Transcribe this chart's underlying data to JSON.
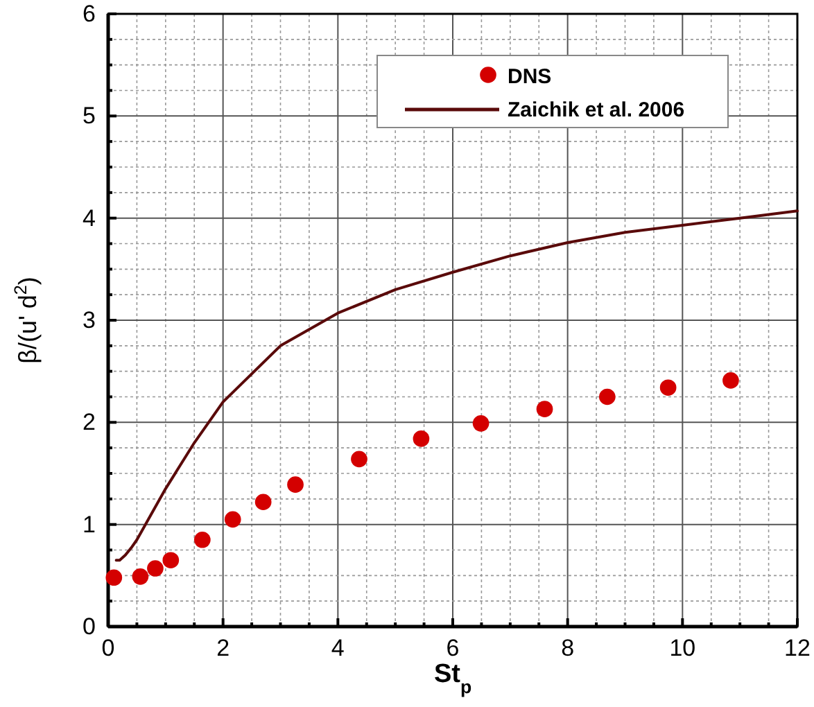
{
  "chart_data": {
    "type": "scatter",
    "xlabel": "St$_{p}$",
    "ylabel": "β/(u' d$^{2}$)",
    "xlim": [
      0,
      12
    ],
    "ylim": [
      0,
      6
    ],
    "xticks": [
      0,
      {
        "value": 0.5,
        "label": null
      },
      {
        "value": 1,
        "label": null
      },
      {
        "value": 1.5,
        "label": null
      },
      2,
      {
        "value": 2.5,
        "label": null
      },
      {
        "value": 3,
        "label": null
      },
      {
        "value": 3.5,
        "label": null
      },
      4,
      {
        "value": 4.5,
        "label": null
      },
      {
        "value": 5,
        "label": null
      },
      {
        "value": 5.5,
        "label": null
      },
      6,
      {
        "value": 6.5,
        "label": null
      },
      {
        "value": 7,
        "label": null
      },
      {
        "value": 7.5,
        "label": null
      },
      8,
      {
        "value": 8.5,
        "label": null
      },
      {
        "value": 9,
        "label": null
      },
      {
        "value": 9.5,
        "label": null
      },
      10,
      {
        "value": 10.5,
        "label": null
      },
      {
        "value": 11,
        "label": null
      },
      {
        "value": 11.5,
        "label": null
      },
      12
    ],
    "yticks": [
      0,
      {
        "value": 0.25,
        "label": null
      },
      {
        "value": 0.5,
        "label": null
      },
      {
        "value": 0.75,
        "label": null
      },
      1,
      {
        "value": 1.25,
        "label": null
      },
      {
        "value": 1.5,
        "label": null
      },
      {
        "value": 1.75,
        "label": null
      },
      2,
      {
        "value": 2.25,
        "label": null
      },
      {
        "value": 2.5,
        "label": null
      },
      {
        "value": 2.75,
        "label": null
      },
      3,
      {
        "value": 3.25,
        "label": null
      },
      {
        "value": 3.5,
        "label": null
      },
      {
        "value": 3.75,
        "label": null
      },
      4,
      {
        "value": 4.25,
        "label": null
      },
      {
        "value": 4.5,
        "label": null
      },
      {
        "value": 4.75,
        "label": null
      },
      5,
      {
        "value": 5.25,
        "label": null
      },
      {
        "value": 5.5,
        "label": null
      },
      {
        "value": 5.75,
        "label": null
      },
      6
    ],
    "grid": true,
    "legend": "top right",
    "series": [
      {
        "name": "DNS",
        "marker": "circle",
        "color": "#d40000",
        "x": [
          0.1,
          0.56,
          0.82,
          1.09,
          1.64,
          2.17,
          2.7,
          3.26,
          4.37,
          5.45,
          6.49,
          7.6,
          8.69,
          9.75,
          10.84
        ],
        "values": [
          0.48,
          0.49,
          0.57,
          0.65,
          0.85,
          1.05,
          1.22,
          1.39,
          1.64,
          1.84,
          1.99,
          2.13,
          2.25,
          2.34,
          2.41
        ]
      },
      {
        "name": "Zaichik et al. 2006",
        "type": "line",
        "marker": "none",
        "line_style": "solid",
        "color": "#5a0a0a",
        "x": [
          0.14,
          0.2,
          0.3,
          0.4,
          0.5,
          0.7,
          1,
          1.5,
          2,
          3,
          4,
          5,
          6,
          7,
          8,
          9,
          10,
          11,
          12
        ],
        "values": [
          0.65,
          0.65,
          0.7,
          0.77,
          0.85,
          1.05,
          1.35,
          1.8,
          2.2,
          2.75,
          3.07,
          3.3,
          3.47,
          3.63,
          3.76,
          3.86,
          3.93,
          4.0,
          4.07
        ]
      }
    ]
  }
}
